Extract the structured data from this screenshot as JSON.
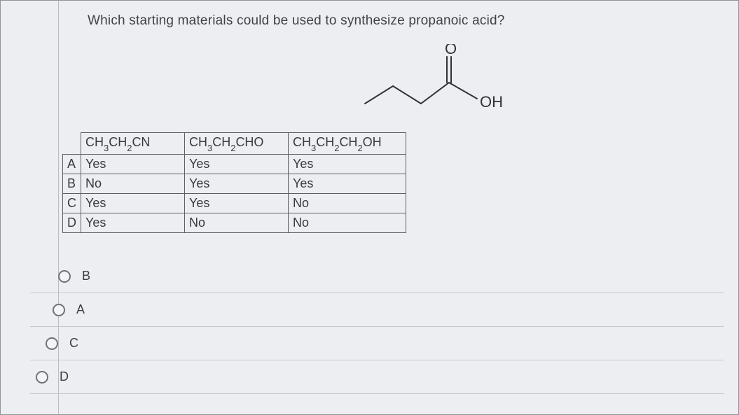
{
  "question": "Which starting materials could be used to synthesize propanoic acid?",
  "molecule": {
    "label_O": "O",
    "label_OH": "OH",
    "stroke": "#2f3338",
    "stroke_width": 2,
    "text_color": "#2f3338",
    "font_size": 22
  },
  "table": {
    "columns": [
      {
        "formula_html": "CH<sub>3</sub>CH<sub>2</sub>CN"
      },
      {
        "formula_html": "CH<sub>3</sub>CH<sub>2</sub>CHO"
      },
      {
        "formula_html": "CH<sub>3</sub>CH<sub>2</sub>CH<sub>2</sub>OH"
      }
    ],
    "rows": [
      {
        "label": "A",
        "cells": [
          "Yes",
          "Yes",
          "Yes"
        ]
      },
      {
        "label": "B",
        "cells": [
          "No",
          "Yes",
          "Yes"
        ]
      },
      {
        "label": "C",
        "cells": [
          "Yes",
          "Yes",
          "No"
        ]
      },
      {
        "label": "D",
        "cells": [
          "Yes",
          "No",
          "No"
        ]
      }
    ]
  },
  "options": [
    {
      "value": "B",
      "label": "B"
    },
    {
      "value": "A",
      "label": "A"
    },
    {
      "value": "C",
      "label": "C"
    },
    {
      "value": "D",
      "label": "D"
    }
  ],
  "colors": {
    "page_bg": "#edeef1",
    "border": "#5b5f63",
    "divider": "#c4c8cd",
    "text": "#3b3f44",
    "radio_border": "#6d7379"
  }
}
